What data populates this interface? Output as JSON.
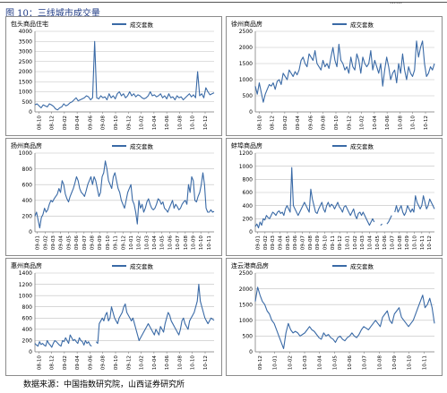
{
  "header": {
    "title": "图 10：三线城市成交量",
    "corner_text": "……"
  },
  "footer": {
    "source": "数据来源：中国指数研究院，山西证券研究所"
  },
  "colors": {
    "line": "#3a6aa6",
    "grid": "#bfbfbf",
    "axis": "#7f7f7f"
  },
  "chart_data": [
    {
      "type": "line",
      "title": "包头商品住宅",
      "legend": [
        "成交套数"
      ],
      "yticks": [
        0,
        500,
        1000,
        1500,
        2000,
        2500,
        3000,
        3500,
        4000
      ],
      "ylim": [
        0,
        4000
      ],
      "xticks": [
        "08-10",
        "08-12",
        "09-02",
        "09-04",
        "09-06",
        "09-08",
        "09-10",
        "09-12",
        "10-02",
        "10-04",
        "10-06",
        "10-08",
        "10-10",
        "10-12"
      ],
      "series": [
        {
          "name": "成交套数",
          "values": [
            350,
            400,
            300,
            200,
            350,
            300,
            250,
            400,
            350,
            280,
            150,
            100,
            200,
            250,
            400,
            300,
            350,
            450,
            500,
            600,
            700,
            550,
            600,
            650,
            700,
            800,
            750,
            600,
            700,
            3500,
            700,
            650,
            800,
            700,
            750,
            600,
            900,
            700,
            800,
            650,
            900,
            1000,
            800,
            900,
            700,
            800,
            1000,
            800,
            900,
            750,
            850,
            800,
            700,
            650,
            700,
            800,
            1000,
            800,
            850,
            750,
            800,
            900,
            700,
            800,
            650,
            900,
            700,
            750,
            600,
            800,
            700,
            750,
            600,
            700,
            800,
            900,
            750,
            850,
            700,
            2000,
            800,
            900,
            700,
            1200,
            1000,
            850,
            900,
            950
          ]
        }
      ]
    },
    {
      "type": "line",
      "title": "徐州商品房",
      "legend": [
        "成交套数"
      ],
      "yticks": [
        0,
        500,
        1000,
        1500,
        2000,
        2500
      ],
      "ylim": [
        0,
        2500
      ],
      "xticks": [
        "08-10",
        "08-12",
        "09-02",
        "09-04",
        "09-06",
        "09-08",
        "09-10",
        "09-12",
        "10-02",
        "10-04",
        "10-06",
        "10-08",
        "10-10",
        "10-12"
      ],
      "series": [
        {
          "name": "成交套数",
          "values": [
            800,
            550,
            900,
            600,
            300,
            550,
            700,
            850,
            800,
            900,
            700,
            950,
            1000,
            850,
            1200,
            1100,
            1000,
            1300,
            1200,
            1100,
            1250,
            1150,
            1300,
            1600,
            1700,
            1500,
            1400,
            1800,
            1700,
            1600,
            1900,
            1500,
            1400,
            1300,
            1600,
            1400,
            1500,
            1350,
            1700,
            2000,
            1600,
            1400,
            2100,
            1600,
            1500,
            1300,
            1400,
            1200,
            1700,
            1400,
            1300,
            1800,
            1600,
            1200,
            1700,
            1500,
            1400,
            1500,
            1900,
            1300,
            1600,
            1400,
            1200,
            1500,
            800,
            1300,
            1700,
            1400,
            1000,
            1200,
            1300,
            900,
            1500,
            1200,
            1800,
            1300,
            1000,
            1400,
            1200,
            1100,
            1300,
            2200,
            1700,
            2000,
            2200,
            1500,
            1100,
            1200,
            1400,
            1300,
            1500
          ]
        }
      ]
    },
    {
      "type": "line",
      "title": "扬州商品房",
      "legend": [
        "成交套数"
      ],
      "yticks": [
        0,
        200,
        400,
        600,
        800,
        1000
      ],
      "ylim": [
        0,
        1000
      ],
      "xticks": [
        "09-01",
        "09-02",
        "09-03",
        "09-04",
        "09-05",
        "09-06",
        "09-07",
        "09-08",
        "09-09",
        "09-10",
        "09-11",
        "09-12",
        "10-01",
        "10-02",
        "10-03",
        "10-04",
        "10-05",
        "10-06",
        "10-07",
        "10-08",
        "10-09",
        "10-10",
        "10-11"
      ],
      "series": [
        {
          "name": "成交套数",
          "values": [
            200,
            250,
            150,
            50,
            180,
            220,
            300,
            250,
            280,
            350,
            400,
            380,
            420,
            450,
            480,
            550,
            500,
            650,
            600,
            480,
            420,
            380,
            450,
            500,
            550,
            620,
            700,
            650,
            550,
            500,
            480,
            450,
            520,
            600,
            650,
            700,
            600,
            700,
            650,
            550,
            450,
            500,
            700,
            750,
            900,
            800,
            650,
            600,
            550,
            700,
            750,
            650,
            550,
            500,
            400,
            350,
            300,
            400,
            500,
            550,
            600,
            400,
            350,
            250,
            100,
            400,
            300,
            350,
            250,
            300,
            380,
            420,
            350,
            300,
            280,
            300,
            350,
            420,
            400,
            350,
            380,
            300,
            280,
            250,
            300,
            350,
            400,
            300,
            350,
            320,
            280,
            300,
            350,
            380,
            400,
            350,
            600,
            500,
            700,
            650,
            400,
            380,
            450,
            500,
            600,
            750,
            600,
            300,
            250,
            250,
            280,
            250,
            260
          ]
        }
      ]
    },
    {
      "type": "line",
      "title": "蚌埠商品房",
      "legend": [
        "成交套数"
      ],
      "yticks": [
        0,
        200,
        400,
        600,
        800,
        1000,
        1200
      ],
      "ylim": [
        0,
        1200
      ],
      "xticks": [
        "09-01",
        "09-02",
        "09-03",
        "09-04",
        "09-05",
        "09-06",
        "09-07",
        "09-08",
        "09-09",
        "09-10",
        "09-11",
        "09-12",
        "10-01",
        "10-02",
        "10-03",
        "10-04",
        "10-05",
        "10-06",
        "10-07",
        "10-08",
        "10-09",
        "10-10",
        "10-11",
        "10-12"
      ],
      "series": [
        {
          "name": "成交套数",
          "values": [
            80,
            120,
            60,
            150,
            100,
            200,
            180,
            250,
            220,
            200,
            250,
            300,
            280,
            250,
            300,
            320,
            280,
            300,
            250,
            350,
            400,
            350,
            300,
            980,
            400,
            350,
            300,
            250,
            300,
            350,
            400,
            450,
            400,
            350,
            300,
            650,
            500,
            400,
            300,
            280,
            350,
            400,
            450,
            350,
            300,
            400,
            450,
            380,
            420,
            400,
            350,
            400,
            450,
            380,
            350,
            300,
            380,
            400,
            350,
            300,
            250,
            300,
            350,
            250,
            200,
            280,
            300,
            250,
            300,
            250,
            200,
            150,
            100,
            150,
            200,
            150,
            null,
            null,
            null,
            100,
            120,
            null,
            null,
            120,
            150,
            200,
            250,
            null,
            300,
            400,
            300,
            350,
            400,
            300,
            250,
            300,
            400,
            350,
            300,
            350,
            300,
            550,
            450,
            400,
            350,
            400,
            550,
            450,
            350,
            400,
            500,
            450,
            400,
            350
          ]
        }
      ]
    },
    {
      "type": "line",
      "title": "惠州商品房",
      "legend": [
        "成交套数"
      ],
      "yticks": [
        0,
        200,
        400,
        600,
        800,
        1000,
        1200,
        1400
      ],
      "ylim": [
        0,
        1400
      ],
      "xticks": [
        "08-10",
        "08-12",
        "09-02",
        "09-04",
        "09-06",
        "09-08",
        "09-10",
        "09-12",
        "10-02",
        "10-04",
        "10-06",
        "10-08",
        "10-10",
        "10-12"
      ],
      "series": [
        {
          "name": "成交套数",
          "values": [
            150,
            120,
            100,
            180,
            130,
            150,
            120,
            100,
            200,
            150,
            120,
            80,
            150,
            200,
            180,
            150,
            120,
            100,
            200,
            180,
            250,
            200,
            150,
            300,
            250,
            200,
            220,
            180,
            150,
            250,
            200,
            180,
            120,
            200,
            150,
            180,
            120,
            100,
            null,
            null,
            180,
            150,
            500,
            550,
            600,
            550,
            650,
            700,
            550,
            600,
            800,
            700,
            600,
            550,
            500,
            600,
            650,
            700,
            800,
            850,
            700,
            650,
            600,
            550,
            600,
            500,
            400,
            300,
            200,
            250,
            300,
            350,
            400,
            450,
            500,
            450,
            400,
            350,
            300,
            400,
            350,
            300,
            450,
            400,
            350,
            500,
            600,
            700,
            650,
            550,
            500,
            450,
            400,
            350,
            300,
            400,
            550,
            600,
            500,
            450,
            400,
            550,
            600,
            650,
            700,
            800,
            900,
            1200,
            900,
            800,
            700,
            600,
            550,
            500,
            550,
            600,
            580,
            560
          ]
        }
      ]
    },
    {
      "type": "line",
      "title": "连云港商品房",
      "legend": [
        "成交套数"
      ],
      "yticks": [
        0,
        500,
        1000,
        1500,
        2000,
        2500
      ],
      "ylim": [
        0,
        2500
      ],
      "xticks": [
        "09-12",
        "10-01",
        "10-02",
        "10-03",
        "10-04",
        "10-05",
        "10-06",
        "10-07",
        "10-08",
        "10-09",
        "10-10",
        "10-11"
      ],
      "series": [
        {
          "name": "成交套数",
          "values": [
            1600,
            2050,
            1800,
            1600,
            1500,
            1300,
            1200,
            1000,
            900,
            700,
            500,
            300,
            100,
            600,
            900,
            700,
            600,
            650,
            600,
            500,
            550,
            600,
            700,
            800,
            700,
            650,
            550,
            450,
            400,
            600,
            500,
            550,
            450,
            400,
            300,
            450,
            500,
            400,
            350,
            450,
            500,
            600,
            500,
            450,
            550,
            700,
            800,
            750,
            700,
            800,
            900,
            1000,
            900,
            800,
            1100,
            1200,
            1300,
            1000,
            900,
            1200,
            1300,
            1400,
            1100,
            1000,
            900,
            800,
            900,
            1000,
            1200,
            1400,
            1600,
            1800,
            1400,
            1500,
            1700,
            1400,
            900
          ]
        }
      ]
    }
  ]
}
